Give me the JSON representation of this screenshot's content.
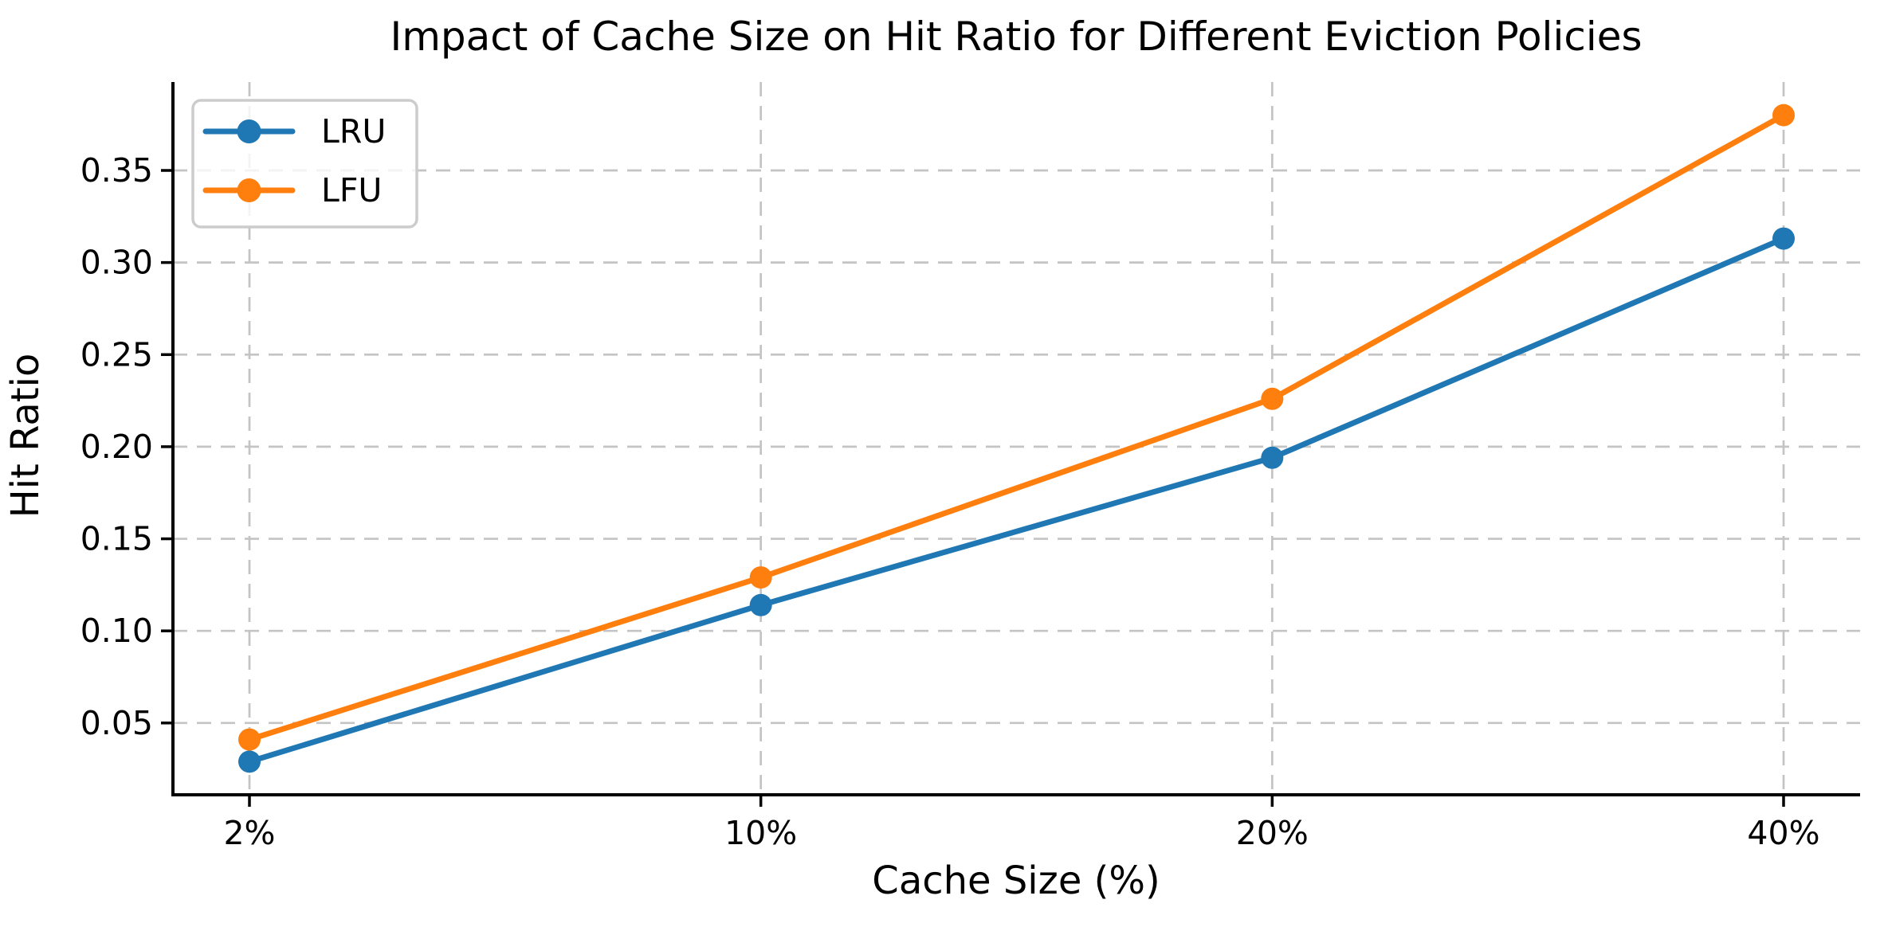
{
  "chart_data": {
    "type": "line",
    "title": "Impact of Cache Size on Hit Ratio for Different Eviction Policies",
    "xlabel": "Cache Size (%)",
    "ylabel": "Hit Ratio",
    "categories": [
      "2%",
      "10%",
      "20%",
      "40%"
    ],
    "series": [
      {
        "name": "LRU",
        "color": "#1f77b4",
        "values": [
          0.029,
          0.114,
          0.194,
          0.313
        ]
      },
      {
        "name": "LFU",
        "color": "#ff7f0e",
        "values": [
          0.041,
          0.129,
          0.226,
          0.38
        ]
      }
    ],
    "ytick_labels": [
      "0.05",
      "0.10",
      "0.15",
      "0.20",
      "0.25",
      "0.30",
      "0.35"
    ],
    "yticks": [
      0.05,
      0.1,
      0.15,
      0.2,
      0.25,
      0.3,
      0.35
    ],
    "ylim": [
      0.011,
      0.398
    ],
    "grid": true,
    "grid_style": "dashed",
    "legend_position": "upper left",
    "colors": {
      "grid": "#c4c4c4",
      "spine": "#000000",
      "text": "#000000",
      "legend_border": "#cccccc",
      "background": "#ffffff"
    }
  }
}
